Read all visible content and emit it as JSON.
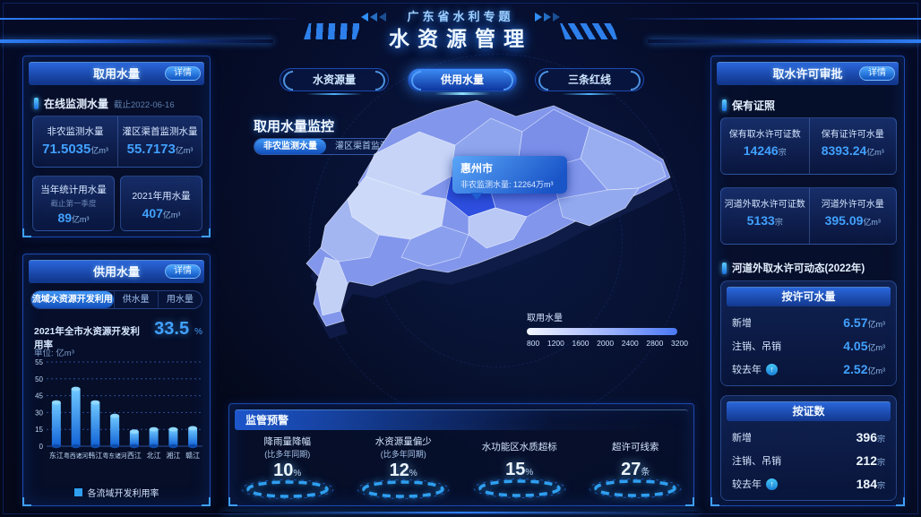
{
  "header": {
    "subtitle": "广东省水利专题",
    "title": "水资源管理"
  },
  "intake": {
    "title": "取用水量",
    "detail": "详情",
    "section_label": "在线监测水量",
    "asof": "截止2022-06-16",
    "cards": [
      {
        "label": "非农监测水量",
        "value": "71.5035",
        "unit": "亿m³"
      },
      {
        "label": "灌区渠首监测水量",
        "value": "55.7173",
        "unit": "亿m³"
      }
    ],
    "usage": [
      {
        "label": "当年统计用水量",
        "sub": "截止第一季度",
        "value": "89",
        "unit": "亿m³"
      },
      {
        "label": "2021年用水量",
        "sub": "",
        "value": "407",
        "unit": "亿m³"
      }
    ]
  },
  "supply": {
    "title": "供用水量",
    "detail": "详情",
    "tabs": [
      {
        "label": "流域水资源开发利用"
      },
      {
        "label": "供水量"
      },
      {
        "label": "用水量"
      }
    ],
    "rate_label": "2021年全市水资源开发利用率",
    "rate_value": "33.5",
    "rate_unit": "%",
    "unit_label": "单位: 亿m³",
    "legend": "各流域开发利用率"
  },
  "chart_data": {
    "type": "bar",
    "title": "各流域开发利用率",
    "categories": [
      "东江",
      "粤西诸河",
      "韩江",
      "粤东诸河",
      "西江",
      "北江",
      "湘江",
      "赣江"
    ],
    "values": [
      39,
      47,
      39,
      27,
      13,
      15,
      15,
      16
    ],
    "yticks": [
      0,
      15,
      30,
      45,
      50,
      55
    ],
    "ylabel": "单位: 亿m³",
    "legend_position": "bottom",
    "grid": "dashed-horizontal",
    "bar_color_top": "#6fc8ff",
    "bar_color_bottom": "#1263d6"
  },
  "center": {
    "tabs": [
      {
        "label": "水资源量"
      },
      {
        "label": "供用水量"
      },
      {
        "label": "三条红线"
      }
    ],
    "monitor_title": "取用水量监控",
    "toggles": [
      {
        "label": "非农监测水量"
      },
      {
        "label": "灌区渠首监测水量"
      }
    ],
    "tooltip": {
      "city": "惠州市",
      "metric": "非农监测水量",
      "value": "12264万m³"
    },
    "scale": {
      "label": "取用水量",
      "ticks": [
        "800",
        "1200",
        "1600",
        "2000",
        "2400",
        "2800",
        "3200"
      ]
    }
  },
  "warning": {
    "title": "监管预警",
    "items": [
      {
        "label": "降雨量降幅",
        "sub": "(比多年同期)",
        "value": "10",
        "unit": "%"
      },
      {
        "label": "水资源量偏少",
        "sub": "(比多年同期)",
        "value": "12",
        "unit": "%"
      },
      {
        "label": "水功能区水质超标",
        "sub": "",
        "value": "15",
        "unit": "%"
      },
      {
        "label": "超许可线索",
        "sub": "",
        "value": "27",
        "unit": "条"
      }
    ]
  },
  "permit": {
    "title": "取水许可审批",
    "detail": "详情",
    "section1": "保有证照",
    "cards": [
      [
        {
          "label": "保有取水许可证数",
          "value": "14246",
          "unit": "宗"
        },
        {
          "label": "保有证许可水量",
          "value": "8393.24",
          "unit": "亿m³"
        }
      ],
      [
        {
          "label": "河道外取水许可证数",
          "value": "5133",
          "unit": "宗"
        },
        {
          "label": "河道外许可水量",
          "value": "395.09",
          "unit": "亿m³"
        }
      ]
    ],
    "section2": "河道外取水许可动态(2022年)",
    "groups": [
      {
        "title": "按许可水量",
        "rows": [
          {
            "label": "新增",
            "value": "6.57",
            "unit": "亿m³"
          },
          {
            "label": "注销、吊销",
            "value": "4.05",
            "unit": "亿m³"
          },
          {
            "label": "较去年",
            "value": "2.52",
            "unit": "亿m³",
            "arrow": "up"
          }
        ]
      },
      {
        "title": "按证数",
        "rows": [
          {
            "label": "新增",
            "value": "396",
            "unit": "宗"
          },
          {
            "label": "注销、吊销",
            "value": "212",
            "unit": "宗"
          },
          {
            "label": "较去年",
            "value": "184",
            "unit": "宗",
            "arrow": "up"
          }
        ]
      }
    ]
  },
  "colors": {
    "accent": "#41a1ff",
    "panel_border": "#1c49b0",
    "title_gradient_top": "#2a66da",
    "map_dark_district": "#2e4fe0"
  }
}
